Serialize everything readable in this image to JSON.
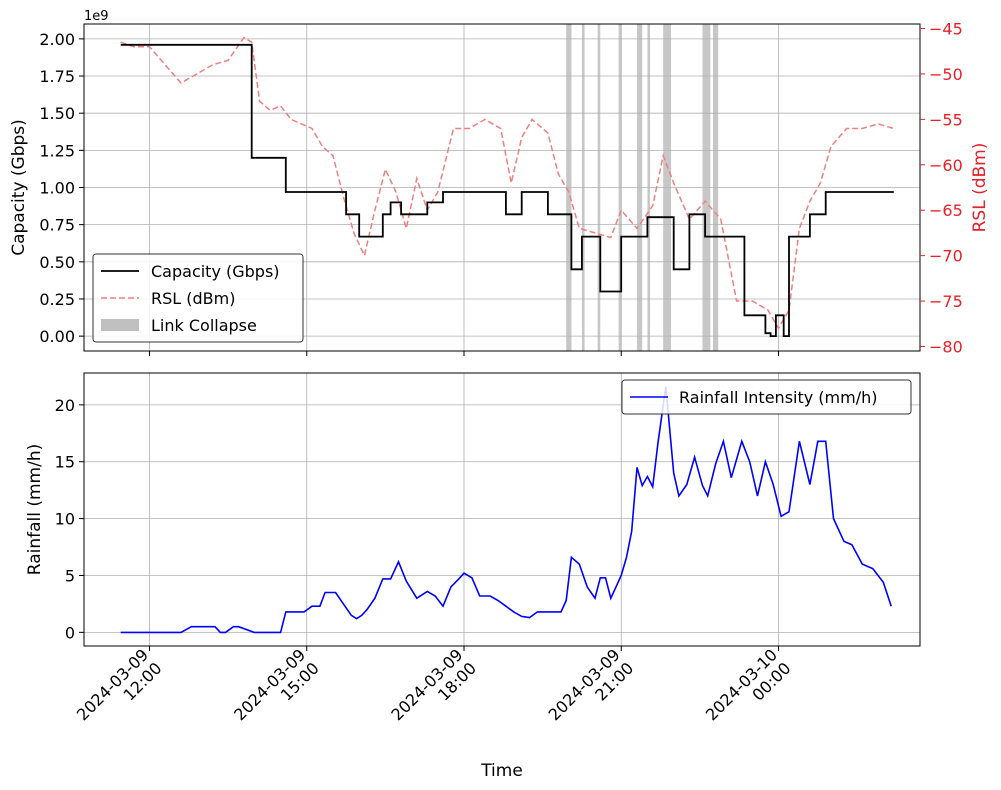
{
  "chart_data": [
    {
      "type": "line",
      "name": "top-panel",
      "xlabel": "",
      "ylabel": "Capacity (Gbps)",
      "y2label": "RSL (dBm)",
      "offset_text": "1e9",
      "x_unit": "hours since 2024-03-09 00:00",
      "xlim": [
        10.75,
        26.7
      ],
      "ylim": [
        -100000000.0,
        2100000000.0
      ],
      "y2lim": [
        -80.5,
        -44.5
      ],
      "yticks": [
        0,
        250000000.0,
        500000000.0,
        750000000.0,
        1000000000.0,
        1250000000.0,
        1500000000.0,
        1750000000.0,
        2000000000.0
      ],
      "ytick_labels": [
        "0.00",
        "0.25",
        "0.50",
        "0.75",
        "1.00",
        "1.25",
        "1.50",
        "1.75",
        "2.00"
      ],
      "y2ticks": [
        -80,
        -75,
        -70,
        -65,
        -60,
        -55,
        -50,
        -45
      ],
      "y2tick_labels": [
        "−80",
        "−75",
        "−70",
        "−65",
        "−60",
        "−55",
        "−50",
        "−45"
      ],
      "grid": true,
      "legend_position": "lower-left",
      "legend": [
        {
          "label": "Capacity (Gbps)",
          "style": "line",
          "color": "#000000"
        },
        {
          "label": "RSL (dBm)",
          "style": "dashed",
          "color": "#f08080"
        },
        {
          "label": "Link Collapse",
          "style": "band",
          "color": "#c0c0c0"
        }
      ],
      "series": [
        {
          "name": "Capacity (Gbps)",
          "color": "#000000",
          "x": [
            11.45,
            13.95,
            13.95,
            14.6,
            14.6,
            15.75,
            15.75,
            16.0,
            16.0,
            16.45,
            16.45,
            16.6,
            16.6,
            16.8,
            16.8,
            17.3,
            17.3,
            17.6,
            17.6,
            18.8,
            18.8,
            19.1,
            19.1,
            19.6,
            19.6,
            20.05,
            20.05,
            20.25,
            20.25,
            20.6,
            20.6,
            21.0,
            21.0,
            21.5,
            21.5,
            22.0,
            22.0,
            22.3,
            22.3,
            22.6,
            22.6,
            23.35,
            23.35,
            23.75,
            23.75,
            23.85,
            23.85,
            23.95,
            23.95,
            24.1,
            24.1,
            24.2,
            24.2,
            24.6,
            24.6,
            24.9,
            24.9,
            26.2
          ],
          "values": [
            1960000000.0,
            1960000000.0,
            1200000000.0,
            1200000000.0,
            970000000.0,
            970000000.0,
            820000000.0,
            820000000.0,
            670000000.0,
            670000000.0,
            820000000.0,
            820000000.0,
            900000000.0,
            900000000.0,
            820000000.0,
            820000000.0,
            900000000.0,
            900000000.0,
            970000000.0,
            970000000.0,
            820000000.0,
            820000000.0,
            970000000.0,
            970000000.0,
            820000000.0,
            820000000.0,
            450000000.0,
            450000000.0,
            670000000.0,
            670000000.0,
            300000000.0,
            300000000.0,
            670000000.0,
            670000000.0,
            800000000.0,
            800000000.0,
            450000000.0,
            450000000.0,
            820000000.0,
            820000000.0,
            670000000.0,
            670000000.0,
            140000000.0,
            140000000.0,
            20000000.0,
            20000000.0,
            0.0,
            0.0,
            140000000.0,
            140000000.0,
            0.0,
            0.0,
            670000000.0,
            670000000.0,
            820000000.0,
            820000000.0,
            970000000.0,
            970000000.0
          ]
        },
        {
          "name": "RSL (dBm)",
          "axis": "right",
          "color": "#f08080",
          "x": [
            11.45,
            11.7,
            12.0,
            12.3,
            12.6,
            12.9,
            13.2,
            13.5,
            13.8,
            13.95,
            14.1,
            14.3,
            14.5,
            14.7,
            14.9,
            15.1,
            15.3,
            15.5,
            15.7,
            15.9,
            16.1,
            16.3,
            16.5,
            16.7,
            16.9,
            17.1,
            17.3,
            17.5,
            17.8,
            18.1,
            18.4,
            18.7,
            18.9,
            19.1,
            19.3,
            19.6,
            19.8,
            20.0,
            20.2,
            20.5,
            20.8,
            21.0,
            21.3,
            21.6,
            21.8,
            22.0,
            22.3,
            22.6,
            22.9,
            23.2,
            23.5,
            23.8,
            24.0,
            24.2,
            24.4,
            24.6,
            24.8,
            25.0,
            25.3,
            25.6,
            25.9,
            26.2
          ],
          "values": [
            -46.5,
            -47.0,
            -47.0,
            -49.0,
            -51.0,
            -50.0,
            -49.0,
            -48.5,
            -46.0,
            -46.5,
            -53.0,
            -54.0,
            -53.5,
            -55.0,
            -55.5,
            -56.0,
            -58.0,
            -59.0,
            -63.5,
            -67.5,
            -70.0,
            -65.0,
            -60.5,
            -63.0,
            -67.0,
            -61.5,
            -65.0,
            -63.0,
            -56.0,
            -56.0,
            -55.0,
            -56.0,
            -62.0,
            -57.0,
            -55.0,
            -56.5,
            -61.0,
            -63.0,
            -67.0,
            -67.5,
            -68.0,
            -65.0,
            -67.0,
            -64.5,
            -59.0,
            -62.0,
            -66.0,
            -64.0,
            -66.0,
            -75.0,
            -75.0,
            -76.0,
            -78.0,
            -76.0,
            -67.0,
            -64.0,
            -62.0,
            -58.0,
            -56.0,
            -56.0,
            -55.5,
            -56.0
          ]
        }
      ],
      "link_collapse_bands": [
        [
          19.95,
          20.05
        ],
        [
          20.25,
          20.3
        ],
        [
          20.55,
          20.6
        ],
        [
          20.95,
          21.0
        ],
        [
          21.3,
          21.4
        ],
        [
          21.5,
          21.55
        ],
        [
          21.8,
          21.95
        ],
        [
          22.55,
          22.7
        ],
        [
          22.75,
          22.85
        ]
      ]
    },
    {
      "type": "line",
      "name": "bottom-panel",
      "xlabel": "Time",
      "ylabel": "Rainfall (mm/h)",
      "x_unit": "hours since 2024-03-09 00:00",
      "xlim": [
        10.75,
        26.7
      ],
      "ylim": [
        -1.2,
        22.8
      ],
      "yticks": [
        0,
        5,
        10,
        15,
        20
      ],
      "ytick_labels": [
        "0",
        "5",
        "10",
        "15",
        "20"
      ],
      "xticks": [
        12,
        15,
        18,
        21,
        24
      ],
      "xtick_labels": [
        {
          "date": "2024-03-09",
          "time": "12:00"
        },
        {
          "date": "2024-03-09",
          "time": "15:00"
        },
        {
          "date": "2024-03-09",
          "time": "18:00"
        },
        {
          "date": "2024-03-09",
          "time": "21:00"
        },
        {
          "date": "2024-03-10",
          "time": "00:00"
        }
      ],
      "grid": true,
      "legend_position": "upper-right",
      "legend": [
        {
          "label": "Rainfall Intensity (mm/h)",
          "style": "line",
          "color": "#0000ff"
        }
      ],
      "series": [
        {
          "name": "Rainfall Intensity (mm/h)",
          "color": "#0000ff",
          "x": [
            11.45,
            11.8,
            12.2,
            12.6,
            12.8,
            13.0,
            13.25,
            13.35,
            13.45,
            13.6,
            13.7,
            14.0,
            14.25,
            14.5,
            14.6,
            14.75,
            14.85,
            14.95,
            15.1,
            15.25,
            15.35,
            15.55,
            15.7,
            15.85,
            15.95,
            16.05,
            16.15,
            16.3,
            16.45,
            16.6,
            16.75,
            16.9,
            17.1,
            17.3,
            17.45,
            17.6,
            17.75,
            17.9,
            18.0,
            18.15,
            18.3,
            18.5,
            18.65,
            18.8,
            18.95,
            19.1,
            19.25,
            19.4,
            19.55,
            19.65,
            19.75,
            19.85,
            19.95,
            20.05,
            20.2,
            20.35,
            20.5,
            20.6,
            20.7,
            20.8,
            20.9,
            21.0,
            21.1,
            21.2,
            21.3,
            21.4,
            21.5,
            21.6,
            21.7,
            21.85,
            22.0,
            22.1,
            22.25,
            22.4,
            22.55,
            22.65,
            22.8,
            22.95,
            23.1,
            23.3,
            23.45,
            23.6,
            23.75,
            23.9,
            24.05,
            24.2,
            24.4,
            24.6,
            24.75,
            24.9,
            25.05,
            25.25,
            25.4,
            25.6,
            25.8,
            26.0,
            26.15
          ],
          "values": [
            0.0,
            0.0,
            0.0,
            0.0,
            0.5,
            0.5,
            0.5,
            0.0,
            0.0,
            0.5,
            0.5,
            0.0,
            0.0,
            0.0,
            1.8,
            1.8,
            1.8,
            1.8,
            2.3,
            2.3,
            3.5,
            3.5,
            2.5,
            1.5,
            1.2,
            1.5,
            2.0,
            3.0,
            4.7,
            4.7,
            6.2,
            4.5,
            3.0,
            3.6,
            3.2,
            2.3,
            4.0,
            4.7,
            5.2,
            4.8,
            3.2,
            3.2,
            2.8,
            2.3,
            1.8,
            1.4,
            1.3,
            1.8,
            1.8,
            1.8,
            1.8,
            1.8,
            2.8,
            6.6,
            6.0,
            4.0,
            3.0,
            4.8,
            4.8,
            3.0,
            4.0,
            5.0,
            6.6,
            8.9,
            14.5,
            12.9,
            13.7,
            12.8,
            16.6,
            21.6,
            14.0,
            12.0,
            13.0,
            15.4,
            12.9,
            12.0,
            14.8,
            16.8,
            13.6,
            16.8,
            15.0,
            12.0,
            15.0,
            13.0,
            10.2,
            10.6,
            16.8,
            13.0,
            16.8,
            16.8,
            10.0,
            8.0,
            7.7,
            6.0,
            5.6,
            4.4,
            2.3
          ]
        }
      ]
    }
  ]
}
